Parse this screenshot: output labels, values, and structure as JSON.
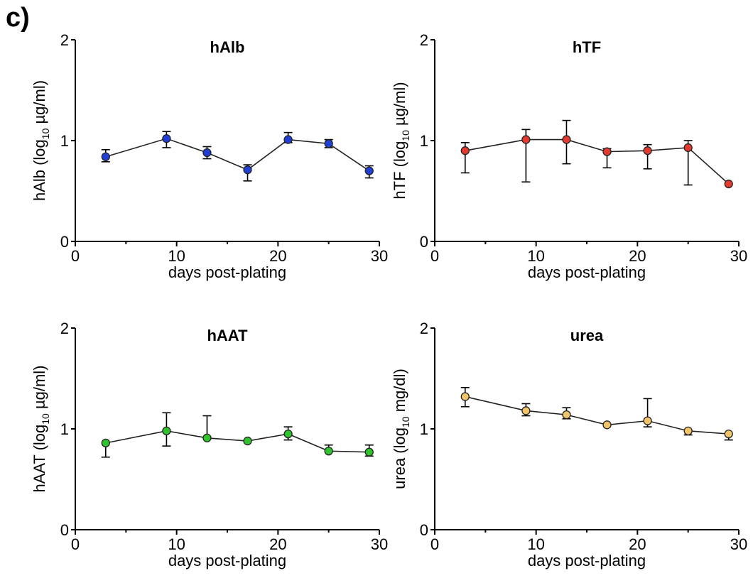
{
  "figure": {
    "panel_label": "c)"
  },
  "chart_data": [
    {
      "type": "line",
      "title": "hAlb",
      "xlabel": "days post-plating",
      "ylabel_parts": [
        "hAlb (log",
        "10",
        " µg/ml)"
      ],
      "xlim": [
        0,
        30
      ],
      "ylim": [
        0,
        2
      ],
      "xticks": [
        0,
        10,
        20,
        30
      ],
      "yticks": [
        0,
        1,
        2
      ],
      "series": [
        {
          "color": "#1f3fd6",
          "x": [
            3,
            9,
            13,
            17,
            21,
            25,
            29
          ],
          "y": [
            0.84,
            1.02,
            0.88,
            0.71,
            1.01,
            0.97,
            0.7
          ],
          "err_up": [
            0.07,
            0.07,
            0.06,
            0.05,
            0.07,
            0.04,
            0.05
          ],
          "err_down": [
            0.05,
            0.09,
            0.06,
            0.11,
            0.03,
            0.04,
            0.07
          ]
        }
      ]
    },
    {
      "type": "line",
      "title": "hTF",
      "xlabel": "days post-plating",
      "ylabel_parts": [
        "hTF (log",
        "10",
        " µg/ml)"
      ],
      "xlim": [
        0,
        30
      ],
      "ylim": [
        0,
        2
      ],
      "xticks": [
        0,
        10,
        20,
        30
      ],
      "yticks": [
        0,
        1,
        2
      ],
      "series": [
        {
          "color": "#e23a2e",
          "x": [
            3,
            9,
            13,
            17,
            21,
            25,
            29
          ],
          "y": [
            0.9,
            1.01,
            1.01,
            0.89,
            0.9,
            0.93,
            0.57
          ],
          "err_up": [
            0.08,
            0.1,
            0.19,
            0.03,
            0.06,
            0.07,
            0.0
          ],
          "err_down": [
            0.22,
            0.42,
            0.24,
            0.16,
            0.18,
            0.37,
            0.0
          ]
        }
      ]
    },
    {
      "type": "line",
      "title": "hAAT",
      "xlabel": "days post-plating",
      "ylabel_parts": [
        "hAAT (log",
        "10",
        " µg/ml)"
      ],
      "xlim": [
        0,
        30
      ],
      "ylim": [
        0,
        2
      ],
      "xticks": [
        0,
        10,
        20,
        30
      ],
      "yticks": [
        0,
        1,
        2
      ],
      "series": [
        {
          "color": "#2fc42c",
          "x": [
            3,
            9,
            13,
            17,
            21,
            25,
            29
          ],
          "y": [
            0.86,
            0.98,
            0.91,
            0.88,
            0.95,
            0.78,
            0.77
          ],
          "err_up": [
            0.0,
            0.18,
            0.22,
            0.0,
            0.07,
            0.06,
            0.07
          ],
          "err_down": [
            0.14,
            0.15,
            0.0,
            0.0,
            0.06,
            0.0,
            0.04
          ]
        }
      ]
    },
    {
      "type": "line",
      "title": "urea",
      "xlabel": "days post-plating",
      "ylabel_parts": [
        "urea (log",
        "10",
        " mg/dl)"
      ],
      "xlim": [
        0,
        30
      ],
      "ylim": [
        0,
        2
      ],
      "xticks": [
        0,
        10,
        20,
        30
      ],
      "yticks": [
        0,
        1,
        2
      ],
      "series": [
        {
          "color": "#f2c46a",
          "x": [
            3,
            9,
            13,
            17,
            21,
            25,
            29
          ],
          "y": [
            1.32,
            1.18,
            1.14,
            1.04,
            1.08,
            0.98,
            0.95
          ],
          "err_up": [
            0.09,
            0.07,
            0.07,
            0.0,
            0.22,
            0.0,
            0.0
          ],
          "err_down": [
            0.1,
            0.05,
            0.04,
            0.0,
            0.06,
            0.04,
            0.06
          ]
        }
      ]
    }
  ]
}
